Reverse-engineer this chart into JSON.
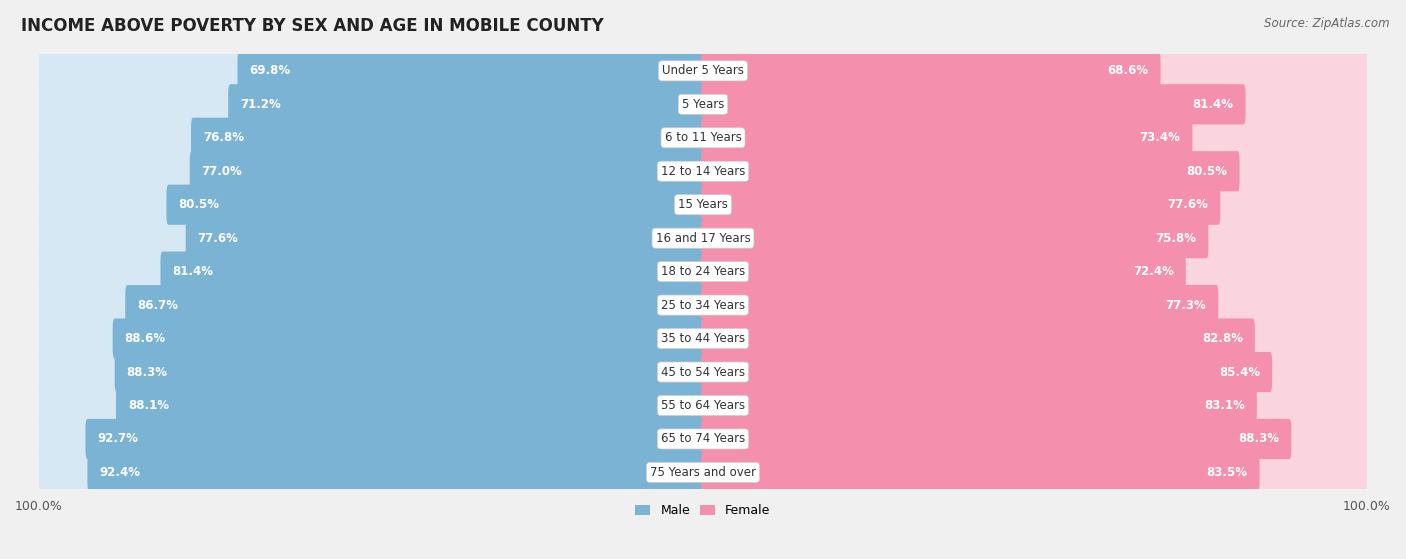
{
  "title": "INCOME ABOVE POVERTY BY SEX AND AGE IN MOBILE COUNTY",
  "source": "Source: ZipAtlas.com",
  "categories": [
    "Under 5 Years",
    "5 Years",
    "6 to 11 Years",
    "12 to 14 Years",
    "15 Years",
    "16 and 17 Years",
    "18 to 24 Years",
    "25 to 34 Years",
    "35 to 44 Years",
    "45 to 54 Years",
    "55 to 64 Years",
    "65 to 74 Years",
    "75 Years and over"
  ],
  "male_values": [
    69.8,
    71.2,
    76.8,
    77.0,
    80.5,
    77.6,
    81.4,
    86.7,
    88.6,
    88.3,
    88.1,
    92.7,
    92.4
  ],
  "female_values": [
    68.6,
    81.4,
    73.4,
    80.5,
    77.6,
    75.8,
    72.4,
    77.3,
    82.8,
    85.4,
    83.1,
    88.3,
    83.5
  ],
  "male_color": "#7BB3D4",
  "female_color": "#F48FAD",
  "male_bg_color": "#D6E8F3",
  "female_bg_color": "#FAD4DF",
  "male_label": "Male",
  "female_label": "Female",
  "background_color": "#f0f0f0",
  "row_bg_color": "#e8e8e8",
  "row_white_color": "#ffffff",
  "title_fontsize": 12,
  "label_fontsize": 8.5,
  "tick_fontsize": 9,
  "source_fontsize": 8.5,
  "cat_fontsize": 8.5
}
